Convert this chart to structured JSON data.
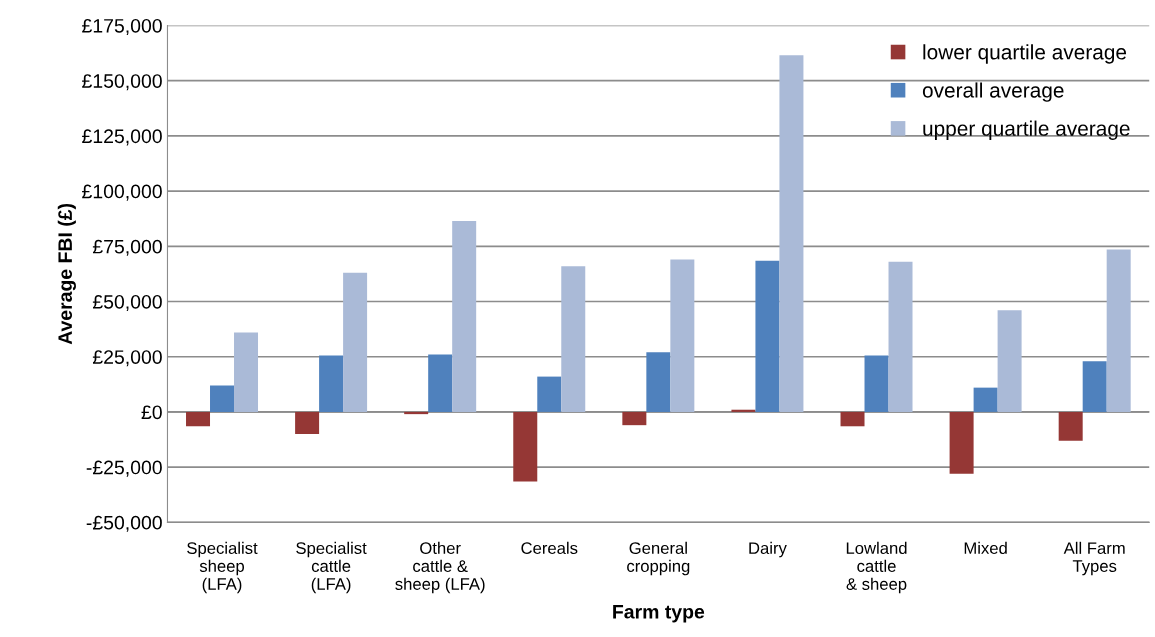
{
  "chart_data": {
    "type": "bar",
    "xlabel": "Farm type",
    "ylabel": "Average FBI (£)",
    "categories": [
      "Specialist\nsheep\n(LFA)",
      "Specialist\ncattle\n(LFA)",
      "Other\ncattle &\nsheep (LFA)",
      "Cereals",
      "General\ncropping",
      "Dairy",
      "Lowland\ncattle\n& sheep",
      "Mixed",
      "All Farm\nTypes"
    ],
    "series": [
      {
        "name": "lower quartile average",
        "color": "#953735",
        "values": [
          -6500,
          -10000,
          -1000,
          -31500,
          -6000,
          1000,
          -6500,
          -28000,
          -13000
        ]
      },
      {
        "name": "overall average",
        "color": "#4f81bd",
        "values": [
          12000,
          25500,
          26000,
          16000,
          27000,
          68500,
          25500,
          11000,
          23000
        ]
      },
      {
        "name": "upper quartile average",
        "color": "#aabad7",
        "values": [
          36000,
          63000,
          86500,
          66000,
          69000,
          161500,
          68000,
          46000,
          73500
        ]
      }
    ],
    "ylim": [
      -50000,
      175000
    ],
    "yticks": [
      {
        "value": -50000,
        "label": "-£50,000"
      },
      {
        "value": -25000,
        "label": "-£25,000"
      },
      {
        "value": 0,
        "label": "£0"
      },
      {
        "value": 25000,
        "label": "£25,000"
      },
      {
        "value": 50000,
        "label": "£50,000"
      },
      {
        "value": 75000,
        "label": "£75,000"
      },
      {
        "value": 100000,
        "label": "£100,000"
      },
      {
        "value": 125000,
        "label": "£125,000"
      },
      {
        "value": 150000,
        "label": "£150,000"
      },
      {
        "value": 175000,
        "label": "£175,000"
      }
    ],
    "grid": "y",
    "legend": "top right"
  }
}
